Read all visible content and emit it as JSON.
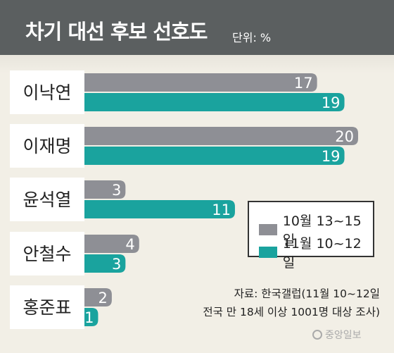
{
  "header": {
    "title": "차기 대선 후보 선호도",
    "unit": "단위: %"
  },
  "colors": {
    "series_1": "#8e8f95",
    "series_2": "#1aa39e",
    "header_bg": "#5b5f60",
    "label_box": "#ffffff"
  },
  "chart_data": {
    "type": "bar",
    "orientation": "horizontal",
    "title": "차기 대선 후보 선호도",
    "unit": "단위: %",
    "categories": [
      "이낙연",
      "이재명",
      "윤석열",
      "안철수",
      "홍준표"
    ],
    "series": [
      {
        "name": "10월 13~15일",
        "values": [
          17,
          20,
          3,
          4,
          2
        ]
      },
      {
        "name": "11월 10~12일",
        "values": [
          19,
          19,
          11,
          3,
          1
        ]
      }
    ],
    "xlim": [
      0,
      20
    ],
    "grid": false,
    "legend_position": "right-middle"
  },
  "footer": {
    "source_line1": "자료: 한국갤럽(11월 10~12일",
    "source_line2": "전국 만 18세 이상 1001명 대상 조사)",
    "logo": "중앙일보"
  }
}
